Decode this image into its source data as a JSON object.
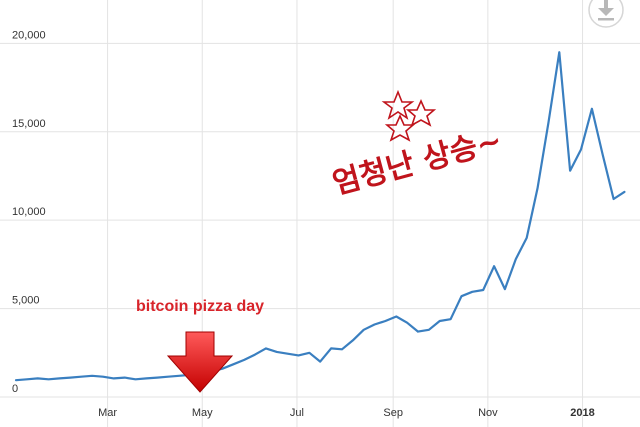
{
  "chart_data": {
    "type": "line",
    "title": "",
    "xlabel": "",
    "ylabel": "",
    "ylim": [
      0,
      22000
    ],
    "xlim": [
      "2017-01-01",
      "2018-01-29"
    ],
    "grid": true,
    "y_ticks": [
      {
        "value": 0,
        "label": "0"
      },
      {
        "value": 5000,
        "label": "5,000"
      },
      {
        "value": 10000,
        "label": "10,000"
      },
      {
        "value": 15000,
        "label": "15,000"
      },
      {
        "value": 20000,
        "label": "20,000"
      }
    ],
    "x_ticks": [
      {
        "date": "2017-03-01",
        "label": "Mar",
        "bold": false
      },
      {
        "date": "2017-05-01",
        "label": "May",
        "bold": false
      },
      {
        "date": "2017-07-01",
        "label": "Jul",
        "bold": false
      },
      {
        "date": "2017-09-01",
        "label": "Sep",
        "bold": false
      },
      {
        "date": "2017-11-01",
        "label": "Nov",
        "bold": false
      },
      {
        "date": "2018-01-01",
        "label": "2018",
        "bold": true
      }
    ],
    "series": [
      {
        "color": "#3a7fc0",
        "points": [
          [
            "2017-01-01",
            950
          ],
          [
            "2017-01-08",
            1000
          ],
          [
            "2017-01-15",
            1050
          ],
          [
            "2017-01-22",
            1000
          ],
          [
            "2017-01-29",
            1050
          ],
          [
            "2017-02-05",
            1100
          ],
          [
            "2017-02-12",
            1150
          ],
          [
            "2017-02-19",
            1200
          ],
          [
            "2017-02-26",
            1150
          ],
          [
            "2017-03-05",
            1050
          ],
          [
            "2017-03-12",
            1100
          ],
          [
            "2017-03-19",
            1000
          ],
          [
            "2017-03-26",
            1050
          ],
          [
            "2017-04-02",
            1100
          ],
          [
            "2017-04-09",
            1150
          ],
          [
            "2017-04-16",
            1200
          ],
          [
            "2017-04-23",
            1250
          ],
          [
            "2017-04-30",
            1300
          ],
          [
            "2017-05-07",
            1450
          ],
          [
            "2017-05-14",
            1600
          ],
          [
            "2017-05-21",
            1850
          ],
          [
            "2017-05-28",
            2100
          ],
          [
            "2017-06-04",
            2400
          ],
          [
            "2017-06-11",
            2750
          ],
          [
            "2017-06-18",
            2550
          ],
          [
            "2017-06-25",
            2450
          ],
          [
            "2017-07-02",
            2350
          ],
          [
            "2017-07-09",
            2500
          ],
          [
            "2017-07-16",
            2000
          ],
          [
            "2017-07-23",
            2750
          ],
          [
            "2017-07-30",
            2700
          ],
          [
            "2017-08-06",
            3200
          ],
          [
            "2017-08-13",
            3800
          ],
          [
            "2017-08-20",
            4100
          ],
          [
            "2017-08-27",
            4300
          ],
          [
            "2017-09-03",
            4550
          ],
          [
            "2017-09-10",
            4200
          ],
          [
            "2017-09-17",
            3700
          ],
          [
            "2017-09-24",
            3800
          ],
          [
            "2017-10-01",
            4300
          ],
          [
            "2017-10-08",
            4400
          ],
          [
            "2017-10-15",
            5700
          ],
          [
            "2017-10-22",
            5950
          ],
          [
            "2017-10-29",
            6050
          ],
          [
            "2017-11-05",
            7400
          ],
          [
            "2017-11-12",
            6100
          ],
          [
            "2017-11-19",
            7800
          ],
          [
            "2017-11-26",
            9000
          ],
          [
            "2017-12-03",
            11800
          ],
          [
            "2017-12-10",
            15500
          ],
          [
            "2017-12-17",
            19500
          ],
          [
            "2017-12-24",
            12800
          ],
          [
            "2017-12-31",
            14000
          ],
          [
            "2018-01-07",
            16300
          ],
          [
            "2018-01-14",
            13700
          ],
          [
            "2018-01-21",
            11200
          ],
          [
            "2018-01-28",
            11600
          ]
        ]
      }
    ],
    "annotations": [
      {
        "text": "bitcoin pizza day",
        "date": "2017-05-22"
      },
      {
        "text": "엄청난 상승~",
        "date": "2017-12-10"
      }
    ]
  }
}
